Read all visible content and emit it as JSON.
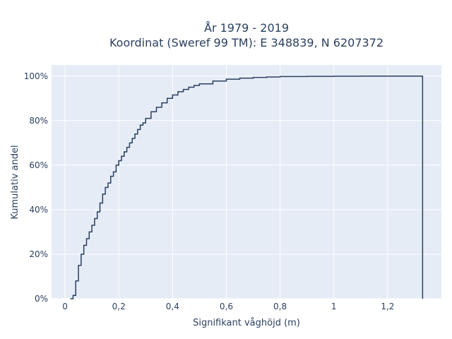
{
  "chart_data": {
    "type": "line",
    "subtype": "cumulative-step",
    "title_line1": "År 1979 - 2019",
    "title_line2": "Koordinat (Sweref 99 TM): E 348839, N 6207372",
    "xlabel": "Signifikant våghöjd (m)",
    "ylabel": "Kumulativ andel",
    "xlim": [
      -0.05,
      1.4
    ],
    "ylim": [
      0,
      1.05
    ],
    "x_ticks": [
      0,
      0.2,
      0.4,
      0.6,
      0.8,
      1.0,
      1.2
    ],
    "x_tick_labels": [
      "0",
      "0,2",
      "0,4",
      "0,6",
      "0,8",
      "1",
      "1,2"
    ],
    "y_ticks": [
      0,
      0.2,
      0.4,
      0.6,
      0.8,
      1.0
    ],
    "y_tick_labels": [
      "0%",
      "20%",
      "40%",
      "60%",
      "80%",
      "100%"
    ],
    "grid": true,
    "background": "#e5ecf6",
    "line_color": "#2a3f5f",
    "x": [
      0.02,
      0.03,
      0.04,
      0.05,
      0.06,
      0.07,
      0.08,
      0.09,
      0.1,
      0.11,
      0.12,
      0.13,
      0.14,
      0.15,
      0.16,
      0.17,
      0.18,
      0.19,
      0.2,
      0.21,
      0.22,
      0.23,
      0.24,
      0.25,
      0.26,
      0.27,
      0.28,
      0.29,
      0.3,
      0.32,
      0.34,
      0.36,
      0.38,
      0.4,
      0.42,
      0.44,
      0.46,
      0.48,
      0.5,
      0.55,
      0.6,
      0.65,
      0.7,
      0.75,
      0.8,
      0.9,
      1.0,
      1.1,
      1.2,
      1.33
    ],
    "y": [
      0.0,
      0.015,
      0.08,
      0.15,
      0.2,
      0.24,
      0.27,
      0.3,
      0.33,
      0.36,
      0.39,
      0.43,
      0.47,
      0.5,
      0.52,
      0.55,
      0.57,
      0.6,
      0.62,
      0.64,
      0.66,
      0.68,
      0.7,
      0.72,
      0.74,
      0.76,
      0.78,
      0.79,
      0.81,
      0.84,
      0.86,
      0.88,
      0.9,
      0.915,
      0.93,
      0.94,
      0.95,
      0.958,
      0.965,
      0.978,
      0.986,
      0.991,
      0.994,
      0.996,
      0.998,
      0.999,
      0.9995,
      1.0,
      1.0,
      1.0
    ]
  }
}
